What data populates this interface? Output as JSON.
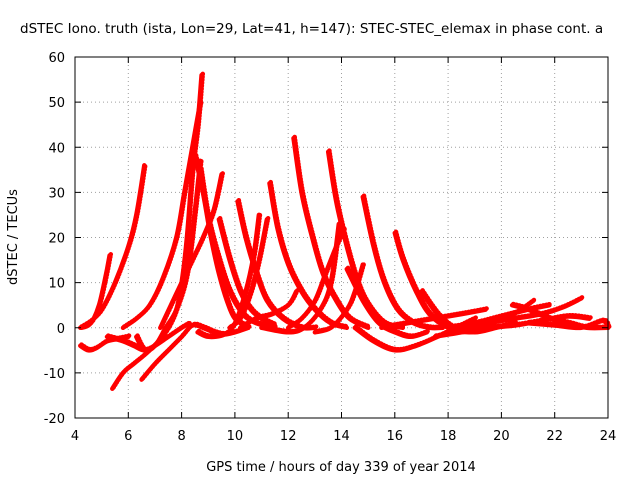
{
  "chart_data": {
    "type": "scatter",
    "title": "dSTEC Iono. truth (ista, Lon=29, Lat=41, h=147): STEC-STEC_elemax in phase cont. a",
    "xlabel": "GPS time / hours of day 339 of year 2014",
    "ylabel": "dSTEC  / TECUs",
    "xlim": [
      4,
      24
    ],
    "ylim": [
      -20,
      60
    ],
    "xticks": [
      4,
      6,
      8,
      10,
      12,
      14,
      16,
      18,
      20,
      22,
      24
    ],
    "yticks": [
      -20,
      -10,
      0,
      10,
      20,
      30,
      40,
      50,
      60
    ],
    "grid": true,
    "marker": "+",
    "color": "#ff0000",
    "series": [
      {
        "points": [
          [
            4.25,
            0
          ],
          [
            4.5,
            0.5
          ],
          [
            4.7,
            2
          ],
          [
            4.9,
            5
          ],
          [
            5.1,
            10
          ],
          [
            5.3,
            16
          ]
        ]
      },
      {
        "points": [
          [
            4.2,
            0
          ],
          [
            4.6,
            1.5
          ],
          [
            5.0,
            4
          ],
          [
            5.5,
            10
          ],
          [
            6.0,
            18
          ],
          [
            6.3,
            25
          ],
          [
            6.6,
            36
          ]
        ]
      },
      {
        "points": [
          [
            4.2,
            -4
          ],
          [
            4.5,
            -5
          ],
          [
            4.8,
            -4.5
          ],
          [
            5.2,
            -3
          ],
          [
            5.6,
            -2.5
          ],
          [
            6.0,
            -2
          ]
        ]
      },
      {
        "points": [
          [
            5.2,
            -2
          ],
          [
            5.8,
            -3
          ],
          [
            6.2,
            -4
          ],
          [
            6.6,
            -5
          ],
          [
            7.0,
            -4
          ],
          [
            7.5,
            -2
          ],
          [
            8.0,
            0
          ],
          [
            8.3,
            1
          ]
        ]
      },
      {
        "points": [
          [
            5.4,
            -13.5
          ],
          [
            5.8,
            -10
          ],
          [
            6.2,
            -8
          ],
          [
            6.8,
            -5
          ],
          [
            7.4,
            -1
          ],
          [
            7.8,
            4
          ],
          [
            8.0,
            10
          ],
          [
            8.2,
            20
          ],
          [
            8.4,
            35
          ],
          [
            8.6,
            45
          ],
          [
            8.75,
            56
          ]
        ]
      },
      {
        "points": [
          [
            6.5,
            -11.5
          ],
          [
            7.0,
            -8
          ],
          [
            7.5,
            -5
          ],
          [
            8.0,
            -2
          ],
          [
            8.4,
            0.5
          ],
          [
            8.8,
            0
          ],
          [
            9.2,
            -1
          ],
          [
            9.6,
            -1.5
          ],
          [
            10.0,
            -1
          ],
          [
            10.5,
            0
          ]
        ]
      },
      {
        "points": [
          [
            5.8,
            0
          ],
          [
            6.3,
            2
          ],
          [
            6.8,
            5
          ],
          [
            7.3,
            11
          ],
          [
            7.8,
            20
          ],
          [
            8.1,
            30
          ],
          [
            8.4,
            40
          ],
          [
            8.7,
            50
          ]
        ]
      },
      {
        "points": [
          [
            6.3,
            -2
          ],
          [
            6.6,
            -5
          ],
          [
            7.0,
            -4
          ],
          [
            7.4,
            0
          ],
          [
            7.8,
            4
          ],
          [
            8.2,
            12
          ],
          [
            8.5,
            26
          ],
          [
            8.7,
            37
          ]
        ]
      },
      {
        "points": [
          [
            8.5,
            38
          ],
          [
            8.8,
            30
          ],
          [
            9.1,
            20
          ],
          [
            9.4,
            12
          ],
          [
            9.7,
            6
          ],
          [
            10.0,
            2
          ],
          [
            10.5,
            0
          ]
        ]
      },
      {
        "points": [
          [
            7.2,
            0
          ],
          [
            7.6,
            5
          ],
          [
            8.0,
            10
          ],
          [
            8.4,
            15
          ],
          [
            8.8,
            20
          ],
          [
            9.2,
            26
          ],
          [
            9.5,
            34
          ]
        ]
      },
      {
        "points": [
          [
            8.7,
            35
          ],
          [
            9.0,
            24
          ],
          [
            9.4,
            15
          ],
          [
            9.8,
            8
          ],
          [
            10.3,
            3
          ],
          [
            10.8,
            1
          ],
          [
            11.5,
            0
          ]
        ]
      },
      {
        "points": [
          [
            9.4,
            24
          ],
          [
            9.8,
            15
          ],
          [
            10.2,
            8
          ],
          [
            10.6,
            4
          ],
          [
            11.0,
            2
          ],
          [
            11.5,
            0.5
          ]
        ]
      },
      {
        "points": [
          [
            8.6,
            -1
          ],
          [
            9.0,
            -2
          ],
          [
            9.6,
            -1.5
          ],
          [
            10.0,
            1
          ],
          [
            10.4,
            8
          ],
          [
            10.7,
            16
          ],
          [
            10.9,
            25
          ]
        ]
      },
      {
        "points": [
          [
            9.8,
            0
          ],
          [
            10.2,
            2
          ],
          [
            10.6,
            8
          ],
          [
            10.9,
            15
          ],
          [
            11.2,
            24
          ]
        ]
      },
      {
        "points": [
          [
            10.1,
            28
          ],
          [
            10.4,
            20
          ],
          [
            10.8,
            12
          ],
          [
            11.2,
            6
          ],
          [
            11.8,
            2
          ],
          [
            12.5,
            0
          ],
          [
            13.0,
            0
          ]
        ]
      },
      {
        "points": [
          [
            10.2,
            0
          ],
          [
            10.8,
            2
          ],
          [
            11.4,
            3
          ],
          [
            12.0,
            5
          ],
          [
            12.3,
            8
          ]
        ]
      },
      {
        "points": [
          [
            11.3,
            32
          ],
          [
            11.6,
            22
          ],
          [
            12.0,
            14
          ],
          [
            12.5,
            8
          ],
          [
            13.0,
            4
          ],
          [
            13.6,
            1
          ],
          [
            14.2,
            0
          ]
        ]
      },
      {
        "points": [
          [
            12.2,
            42
          ],
          [
            12.5,
            30
          ],
          [
            12.9,
            20
          ],
          [
            13.3,
            12
          ],
          [
            13.8,
            6
          ],
          [
            14.3,
            2
          ],
          [
            15.0,
            0
          ]
        ]
      },
      {
        "points": [
          [
            12.0,
            0
          ],
          [
            12.5,
            2
          ],
          [
            13.0,
            6
          ],
          [
            13.4,
            12
          ],
          [
            13.8,
            18
          ],
          [
            14.1,
            22
          ]
        ]
      },
      {
        "points": [
          [
            11.0,
            0
          ],
          [
            12.0,
            -1
          ],
          [
            12.6,
            0
          ],
          [
            13.2,
            4
          ],
          [
            13.6,
            10
          ],
          [
            13.9,
            23
          ]
        ]
      },
      {
        "points": [
          [
            13.5,
            39
          ],
          [
            13.8,
            28
          ],
          [
            14.2,
            18
          ],
          [
            14.6,
            10
          ],
          [
            15.0,
            5
          ],
          [
            15.6,
            1
          ],
          [
            16.3,
            0
          ]
        ]
      },
      {
        "points": [
          [
            13.0,
            -1
          ],
          [
            13.6,
            0
          ],
          [
            14.2,
            4
          ],
          [
            14.5,
            8
          ],
          [
            14.8,
            14
          ]
        ]
      },
      {
        "points": [
          [
            14.8,
            29
          ],
          [
            15.2,
            18
          ],
          [
            15.6,
            10
          ],
          [
            16.1,
            4
          ],
          [
            16.7,
            1
          ],
          [
            17.3,
            0
          ],
          [
            17.8,
            0
          ]
        ]
      },
      {
        "points": [
          [
            14.2,
            13
          ],
          [
            14.8,
            6
          ],
          [
            15.4,
            1
          ],
          [
            16.0,
            -1
          ],
          [
            16.6,
            -2
          ],
          [
            17.2,
            -1
          ]
        ]
      },
      {
        "points": [
          [
            16.0,
            21
          ],
          [
            16.3,
            15
          ],
          [
            16.8,
            8
          ],
          [
            17.3,
            3
          ],
          [
            18.0,
            0
          ],
          [
            18.8,
            -1
          ],
          [
            19.5,
            0
          ]
        ]
      },
      {
        "points": [
          [
            14.5,
            0
          ],
          [
            15.2,
            -3
          ],
          [
            16.0,
            -5
          ],
          [
            16.8,
            -4
          ],
          [
            17.6,
            -2
          ],
          [
            18.3,
            0
          ],
          [
            19.0,
            2
          ]
        ]
      },
      {
        "points": [
          [
            17.0,
            8
          ],
          [
            17.6,
            3
          ],
          [
            18.2,
            0
          ],
          [
            19.0,
            -1
          ],
          [
            19.8,
            0
          ],
          [
            20.5,
            1
          ]
        ]
      },
      {
        "points": [
          [
            15.5,
            0
          ],
          [
            16.5,
            1
          ],
          [
            17.5,
            2
          ],
          [
            18.5,
            3
          ],
          [
            19.4,
            4
          ]
        ]
      },
      {
        "points": [
          [
            17.5,
            -2
          ],
          [
            18.5,
            -1
          ],
          [
            19.3,
            0
          ],
          [
            20.0,
            2
          ],
          [
            20.6,
            3.5
          ],
          [
            21.2,
            6
          ]
        ]
      },
      {
        "points": [
          [
            18.0,
            0
          ],
          [
            19.0,
            1
          ],
          [
            20.0,
            2.5
          ],
          [
            21.0,
            4
          ],
          [
            21.8,
            5
          ]
        ]
      },
      {
        "points": [
          [
            20.4,
            5
          ],
          [
            21.0,
            4
          ],
          [
            21.8,
            2
          ],
          [
            22.5,
            1
          ],
          [
            23.2,
            0
          ],
          [
            24.0,
            0
          ]
        ]
      },
      {
        "points": [
          [
            18.5,
            0
          ],
          [
            19.5,
            1
          ],
          [
            20.5,
            2
          ],
          [
            21.5,
            3
          ],
          [
            22.3,
            4.5
          ],
          [
            23.0,
            6.5
          ]
        ]
      },
      {
        "points": [
          [
            19.5,
            0
          ],
          [
            20.5,
            0.5
          ],
          [
            21.5,
            1.5
          ],
          [
            22.5,
            2.5
          ],
          [
            23.3,
            2
          ]
        ]
      },
      {
        "points": [
          [
            21.0,
            1
          ],
          [
            22.0,
            0.5
          ],
          [
            23.0,
            0
          ],
          [
            23.8,
            1.5
          ],
          [
            24.0,
            0
          ]
        ]
      }
    ]
  }
}
